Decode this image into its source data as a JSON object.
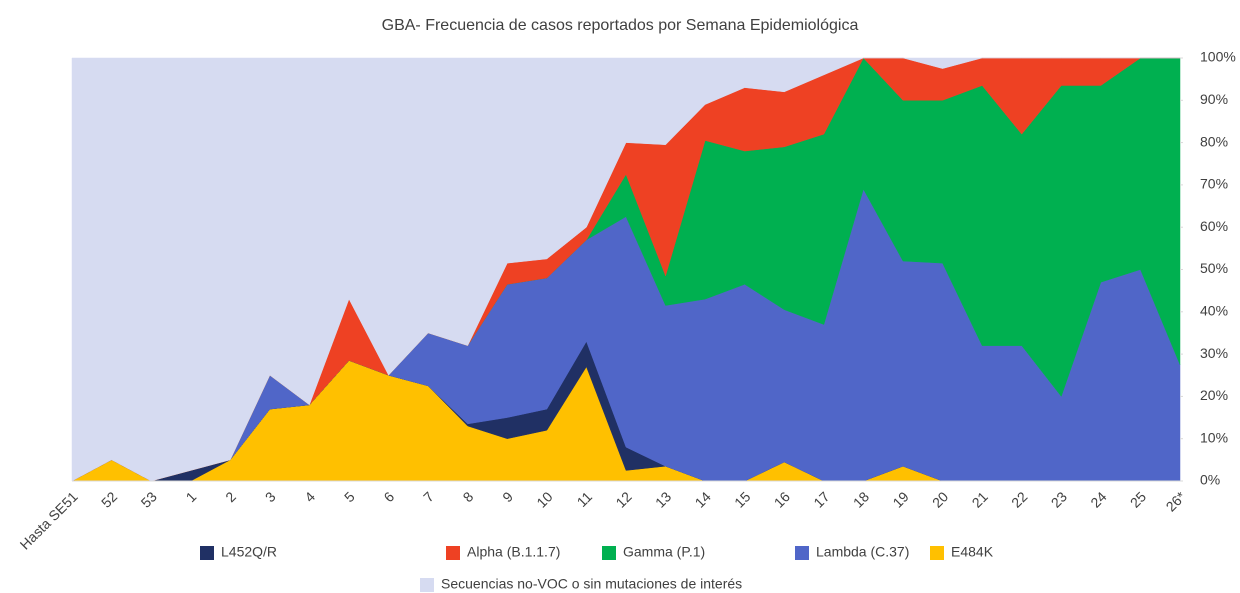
{
  "chart_data": {
    "type": "stacked_area",
    "title": "GBA- Frecuencia de casos reportados por Semana Epidemiológica",
    "categories": [
      "Hasta SE51",
      "52",
      "53",
      "1",
      "2",
      "3",
      "4",
      "5",
      "6",
      "7",
      "8",
      "9",
      "10",
      "11",
      "12",
      "13",
      "14",
      "15",
      "16",
      "17",
      "18",
      "19",
      "20",
      "21",
      "22",
      "23",
      "24",
      "25",
      "26*"
    ],
    "series": [
      {
        "name": "E484K",
        "color": "#ffc000",
        "values": [
          0,
          5,
          0,
          0,
          5,
          17,
          18,
          28.5,
          25,
          22.5,
          13,
          10,
          12,
          27,
          2.5,
          3.5,
          0,
          0,
          4.5,
          0,
          0,
          3.5,
          0,
          0,
          0,
          0,
          0,
          0,
          0
        ]
      },
      {
        "name": "L452Q/R",
        "color": "#203064",
        "values": [
          0,
          0,
          0,
          2.5,
          0,
          0,
          0,
          0,
          0,
          0,
          0.5,
          5,
          5,
          6,
          5.5,
          0,
          0,
          0,
          0,
          0,
          0,
          0,
          0,
          0,
          0,
          0,
          0,
          0,
          0
        ]
      },
      {
        "name": "Lambda (C.37)",
        "color": "#5066c8",
        "values": [
          0,
          0,
          0,
          0,
          0,
          8,
          0,
          0,
          0,
          12.5,
          18.5,
          31.5,
          31,
          24,
          54.5,
          38,
          43,
          46.5,
          36,
          37,
          69,
          48.5,
          51.5,
          32,
          32,
          20,
          47,
          50,
          27.5
        ]
      },
      {
        "name": "Gamma (P.1)",
        "color": "#00b050",
        "values": [
          0,
          0,
          0,
          0,
          0,
          0,
          0,
          0,
          0,
          0,
          0,
          0,
          0,
          0,
          10,
          7,
          37.5,
          31.5,
          38.5,
          45,
          31,
          38,
          38.5,
          61.5,
          50,
          73.5,
          46.5,
          50,
          72.5
        ]
      },
      {
        "name": "Alpha (B.1.1.7)",
        "color": "#ee4123",
        "values": [
          0,
          0,
          0,
          0,
          0,
          0,
          0,
          14.5,
          0,
          0,
          0,
          5,
          4.5,
          3,
          7.5,
          31,
          8.5,
          15,
          13,
          14,
          0,
          10,
          7.5,
          6.5,
          18,
          6.5,
          6.5,
          0,
          0
        ]
      },
      {
        "name": "Secuencias no-VOC o sin mutaciones de interés",
        "color": "#d6dbf1",
        "values": [
          100,
          95,
          100,
          97.5,
          95,
          75,
          82,
          57,
          75,
          65,
          68,
          48.5,
          47.5,
          40,
          20,
          20.5,
          11,
          7,
          8,
          4,
          0,
          0,
          2.5,
          0,
          0,
          0,
          0,
          0,
          0
        ]
      }
    ],
    "ylim": [
      0,
      100
    ],
    "yticks": [
      {
        "value": 0,
        "label": "0%"
      },
      {
        "value": 10,
        "label": "10%"
      },
      {
        "value": 20,
        "label": "20%"
      },
      {
        "value": 30,
        "label": "30%"
      },
      {
        "value": 40,
        "label": "40%"
      },
      {
        "value": 50,
        "label": "50%"
      },
      {
        "value": 60,
        "label": "60%"
      },
      {
        "value": 70,
        "label": "70%"
      },
      {
        "value": 80,
        "label": "80%"
      },
      {
        "value": 90,
        "label": "90%"
      },
      {
        "value": 100,
        "label": "100%"
      }
    ]
  }
}
